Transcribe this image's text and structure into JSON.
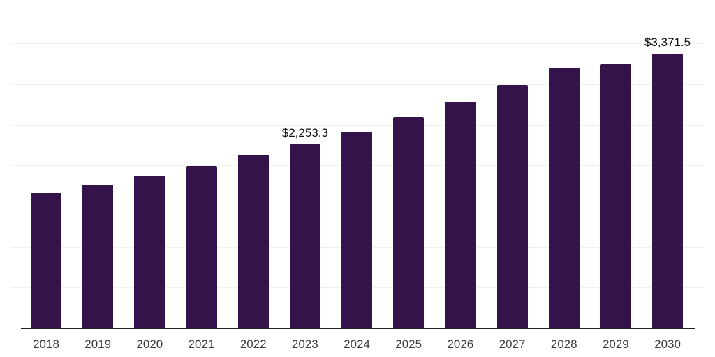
{
  "chart_data": {
    "type": "bar",
    "title": "",
    "xlabel": "",
    "ylabel": "",
    "categories": [
      "2018",
      "2019",
      "2020",
      "2021",
      "2022",
      "2023",
      "2024",
      "2025",
      "2026",
      "2027",
      "2028",
      "2029",
      "2030"
    ],
    "values": [
      1654,
      1760,
      1874,
      1989,
      2131,
      2253.3,
      2415,
      2590,
      2784,
      2990,
      3204,
      3247,
      3371.5
    ],
    "annotations": [
      {
        "category_index": 5,
        "text": "$2,253.3"
      },
      {
        "category_index": 12,
        "text": "$3,371.5"
      }
    ],
    "ylim": [
      0,
      4000
    ],
    "gridline_step": 500,
    "grid": "horizontal",
    "y_axis_labels_visible": false,
    "legend": "none",
    "colors": {
      "bar": "#34124a",
      "axis_line": "#222222",
      "gridline": "#f2f2f2",
      "top_gridline": "#e9e9e9",
      "value_label": "#0d0d0d",
      "tick_label": "#3c3c3c",
      "background": "#ffffff"
    }
  }
}
